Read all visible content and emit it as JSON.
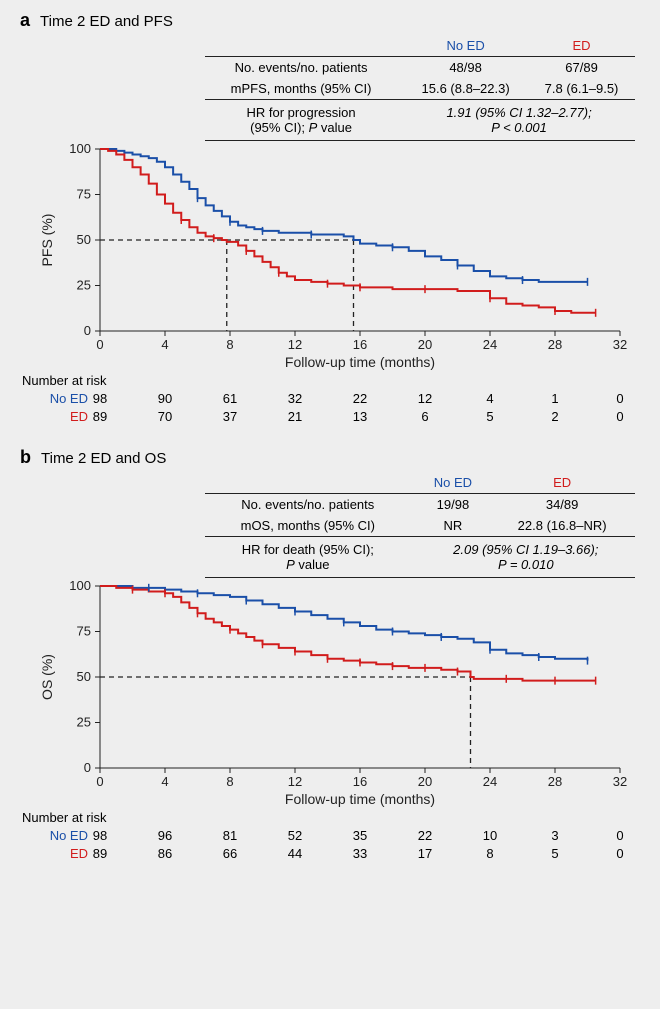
{
  "figure": {
    "background_color": "#eeeeee",
    "colors": {
      "no_ed": "#1a4fa8",
      "ed": "#d11c1c",
      "axis": "#222222",
      "dash": "#222222"
    },
    "group_labels": {
      "no_ed": "No ED",
      "ed": "ED"
    },
    "risk_title": "Number at risk",
    "xlabel": "Follow-up time (months)",
    "x_ticks": [
      0,
      4,
      8,
      12,
      16,
      20,
      24,
      28,
      32
    ],
    "y_ticks": [
      0,
      25,
      50,
      75,
      100
    ],
    "xlim": [
      0,
      32
    ],
    "ylim": [
      0,
      100
    ],
    "line_width": 2,
    "axis_width": 1,
    "tick_fontsize": 13,
    "label_fontsize": 14,
    "panels": [
      {
        "letter": "a",
        "title": "Time 2 ED and PFS",
        "ylabel": "PFS (%)",
        "stats": {
          "rows": [
            {
              "label": "No. events/no. patients",
              "no_ed": "48/98",
              "ed": "67/89"
            },
            {
              "label": "mPFS, months (95% CI)",
              "no_ed": "15.6 (8.8–22.3)",
              "ed": "7.8 (6.1–9.5)"
            }
          ],
          "hr_label": "HR for progression\n(95% CI); P value",
          "hr_value": "1.91 (95% CI 1.32–2.77);\nP < 0.001",
          "hr_p_italic_part": "P"
        },
        "median_drops": [
          {
            "x": 7.8
          },
          {
            "x": 15.6
          }
        ],
        "curves": {
          "no_ed": [
            [
              0,
              100
            ],
            [
              0.5,
              100
            ],
            [
              1,
              99
            ],
            [
              1.5,
              98
            ],
            [
              2,
              97
            ],
            [
              2.5,
              96
            ],
            [
              3,
              95
            ],
            [
              3.5,
              93
            ],
            [
              4,
              90
            ],
            [
              4.5,
              86
            ],
            [
              5,
              82
            ],
            [
              5.5,
              78
            ],
            [
              6,
              73
            ],
            [
              6.5,
              69
            ],
            [
              7,
              66
            ],
            [
              7.5,
              63
            ],
            [
              8,
              60
            ],
            [
              8.5,
              58
            ],
            [
              9,
              57
            ],
            [
              9.5,
              56
            ],
            [
              10,
              55
            ],
            [
              11,
              54
            ],
            [
              12,
              54
            ],
            [
              13,
              53
            ],
            [
              14,
              53
            ],
            [
              15,
              52
            ],
            [
              15.6,
              50
            ],
            [
              16,
              48
            ],
            [
              17,
              47
            ],
            [
              18,
              46
            ],
            [
              19,
              44
            ],
            [
              20,
              41
            ],
            [
              21,
              39
            ],
            [
              22,
              36
            ],
            [
              23,
              33
            ],
            [
              24,
              30
            ],
            [
              25,
              29
            ],
            [
              26,
              28
            ],
            [
              27,
              27
            ],
            [
              28,
              27
            ],
            [
              29,
              27
            ],
            [
              30,
              27
            ]
          ],
          "ed": [
            [
              0,
              100
            ],
            [
              0.5,
              99
            ],
            [
              1,
              97
            ],
            [
              1.5,
              94
            ],
            [
              2,
              90
            ],
            [
              2.5,
              86
            ],
            [
              3,
              81
            ],
            [
              3.5,
              75
            ],
            [
              4,
              70
            ],
            [
              4.5,
              65
            ],
            [
              5,
              61
            ],
            [
              5.5,
              57
            ],
            [
              6,
              54
            ],
            [
              6.5,
              52
            ],
            [
              7,
              51
            ],
            [
              7.5,
              50
            ],
            [
              7.8,
              49
            ],
            [
              8.5,
              47
            ],
            [
              9,
              44
            ],
            [
              9.5,
              41
            ],
            [
              10,
              38
            ],
            [
              10.5,
              35
            ],
            [
              11,
              32
            ],
            [
              11.5,
              30
            ],
            [
              12,
              28
            ],
            [
              13,
              27
            ],
            [
              14,
              26
            ],
            [
              15,
              25
            ],
            [
              16,
              24
            ],
            [
              17,
              24
            ],
            [
              18,
              23
            ],
            [
              19,
              23
            ],
            [
              20,
              23
            ],
            [
              22,
              22
            ],
            [
              24,
              18
            ],
            [
              25,
              15
            ],
            [
              26,
              14
            ],
            [
              27,
              13
            ],
            [
              28,
              11
            ],
            [
              29,
              10
            ],
            [
              30,
              10
            ],
            [
              30.5,
              10
            ]
          ]
        },
        "censor_ticks": {
          "no_ed": [
            [
              6,
              73
            ],
            [
              8,
              60
            ],
            [
              10,
              55
            ],
            [
              13,
              53
            ],
            [
              18,
              46
            ],
            [
              22,
              36
            ],
            [
              26,
              28
            ],
            [
              30,
              27
            ]
          ],
          "ed": [
            [
              5,
              61
            ],
            [
              7,
              51
            ],
            [
              9,
              44
            ],
            [
              11,
              32
            ],
            [
              14,
              26
            ],
            [
              16,
              24
            ],
            [
              20,
              23
            ],
            [
              24,
              18
            ],
            [
              28,
              11
            ],
            [
              30.5,
              10
            ]
          ]
        },
        "risk": {
          "no_ed": [
            98,
            90,
            61,
            32,
            22,
            12,
            4,
            1,
            0
          ],
          "ed": [
            89,
            70,
            37,
            21,
            13,
            6,
            5,
            2,
            0
          ]
        }
      },
      {
        "letter": "b",
        "title": "Time 2 ED and OS",
        "ylabel": "OS (%)",
        "stats": {
          "rows": [
            {
              "label": "No. events/no. patients",
              "no_ed": "19/98",
              "ed": "34/89"
            },
            {
              "label": "mOS, months (95% CI)",
              "no_ed": "NR",
              "ed": "22.8 (16.8–NR)"
            }
          ],
          "hr_label": "HR for death (95% CI);\nP value",
          "hr_value": "2.09 (95% CI 1.19–3.66);\nP = 0.010"
        },
        "median_drops": [
          {
            "x": 22.8
          }
        ],
        "curves": {
          "no_ed": [
            [
              0,
              100
            ],
            [
              1,
              100
            ],
            [
              2,
              99
            ],
            [
              3,
              99
            ],
            [
              4,
              98
            ],
            [
              5,
              97
            ],
            [
              6,
              96
            ],
            [
              7,
              95
            ],
            [
              8,
              94
            ],
            [
              9,
              92
            ],
            [
              10,
              90
            ],
            [
              11,
              88
            ],
            [
              12,
              86
            ],
            [
              13,
              84
            ],
            [
              14,
              82
            ],
            [
              15,
              80
            ],
            [
              16,
              78
            ],
            [
              17,
              76
            ],
            [
              18,
              75
            ],
            [
              19,
              74
            ],
            [
              20,
              73
            ],
            [
              21,
              72
            ],
            [
              22,
              71
            ],
            [
              23,
              69
            ],
            [
              24,
              65
            ],
            [
              25,
              63
            ],
            [
              26,
              62
            ],
            [
              27,
              61
            ],
            [
              28,
              60
            ],
            [
              29,
              60
            ],
            [
              30,
              59
            ]
          ],
          "ed": [
            [
              0,
              100
            ],
            [
              1,
              99
            ],
            [
              2,
              98
            ],
            [
              3,
              97
            ],
            [
              4,
              96
            ],
            [
              4.5,
              94
            ],
            [
              5,
              91
            ],
            [
              5.5,
              88
            ],
            [
              6,
              85
            ],
            [
              6.5,
              82
            ],
            [
              7,
              80
            ],
            [
              7.5,
              78
            ],
            [
              8,
              76
            ],
            [
              8.5,
              74
            ],
            [
              9,
              72
            ],
            [
              9.5,
              70
            ],
            [
              10,
              68
            ],
            [
              11,
              66
            ],
            [
              12,
              64
            ],
            [
              13,
              62
            ],
            [
              14,
              60
            ],
            [
              15,
              59
            ],
            [
              16,
              58
            ],
            [
              17,
              57
            ],
            [
              18,
              56
            ],
            [
              19,
              55
            ],
            [
              20,
              55
            ],
            [
              21,
              54
            ],
            [
              22,
              53
            ],
            [
              22.8,
              50
            ],
            [
              23,
              49
            ],
            [
              24,
              49
            ],
            [
              25,
              49
            ],
            [
              26,
              48
            ],
            [
              27,
              48
            ],
            [
              28,
              48
            ],
            [
              29,
              48
            ],
            [
              30,
              48
            ],
            [
              30.5,
              48
            ]
          ]
        },
        "censor_ticks": {
          "no_ed": [
            [
              3,
              99
            ],
            [
              6,
              96
            ],
            [
              9,
              92
            ],
            [
              12,
              86
            ],
            [
              15,
              80
            ],
            [
              18,
              75
            ],
            [
              21,
              72
            ],
            [
              24,
              65
            ],
            [
              27,
              61
            ],
            [
              30,
              59
            ]
          ],
          "ed": [
            [
              2,
              98
            ],
            [
              4,
              96
            ],
            [
              6,
              85
            ],
            [
              8,
              76
            ],
            [
              10,
              68
            ],
            [
              12,
              64
            ],
            [
              14,
              60
            ],
            [
              16,
              58
            ],
            [
              18,
              56
            ],
            [
              20,
              55
            ],
            [
              22,
              53
            ],
            [
              25,
              49
            ],
            [
              28,
              48
            ],
            [
              30.5,
              48
            ]
          ]
        },
        "risk": {
          "no_ed": [
            98,
            96,
            81,
            52,
            35,
            22,
            10,
            3,
            0
          ],
          "ed": [
            89,
            86,
            66,
            44,
            33,
            17,
            8,
            5,
            0
          ]
        }
      }
    ]
  }
}
